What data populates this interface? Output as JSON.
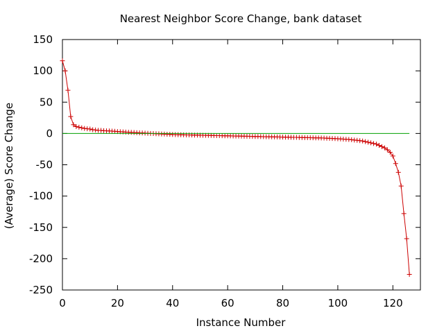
{
  "chart_data": {
    "type": "line",
    "title": "Nearest Neighbor Score Change, bank dataset",
    "xlabel": "Instance Number",
    "ylabel": "(Average) Score Change",
    "xlim": [
      0,
      130
    ],
    "ylim": [
      -250,
      150
    ],
    "xticks": [
      0,
      20,
      40,
      60,
      80,
      100,
      120
    ],
    "yticks": [
      150,
      100,
      50,
      0,
      -50,
      -100,
      -150,
      -200,
      -250
    ],
    "grid": false,
    "legend": "none",
    "series": [
      {
        "color": "#cc0000",
        "marker": "plus",
        "x": [
          0,
          1,
          2,
          3,
          4,
          5,
          6,
          7,
          8,
          9,
          10,
          11,
          12,
          13,
          14,
          15,
          16,
          17,
          18,
          19,
          20,
          21,
          22,
          23,
          24,
          25,
          26,
          27,
          28,
          29,
          30,
          31,
          32,
          33,
          34,
          35,
          36,
          37,
          38,
          39,
          40,
          41,
          42,
          43,
          44,
          45,
          46,
          47,
          48,
          49,
          50,
          51,
          52,
          53,
          54,
          55,
          56,
          57,
          58,
          59,
          60,
          61,
          62,
          63,
          64,
          65,
          66,
          67,
          68,
          69,
          70,
          71,
          72,
          73,
          74,
          75,
          76,
          77,
          78,
          79,
          80,
          81,
          82,
          83,
          84,
          85,
          86,
          87,
          88,
          89,
          90,
          91,
          92,
          93,
          94,
          95,
          96,
          97,
          98,
          99,
          100,
          101,
          102,
          103,
          104,
          105,
          106,
          107,
          108,
          109,
          110,
          111,
          112,
          113,
          114,
          115,
          116,
          117,
          118,
          119,
          120,
          121,
          122,
          123,
          124,
          125,
          126
        ],
        "y": [
          116,
          100,
          69,
          27,
          14,
          11,
          10,
          9,
          8,
          7.5,
          7,
          6,
          5.5,
          5,
          4.8,
          4.5,
          4.2,
          4,
          3.7,
          3.4,
          3.1,
          2.8,
          2.5,
          2.2,
          2,
          1.8,
          1.5,
          1.3,
          1,
          0.8,
          0.5,
          0.3,
          0,
          -0.2,
          -0.4,
          -0.6,
          -0.8,
          -1,
          -1.2,
          -1.4,
          -1.6,
          -1.8,
          -2,
          -2.1,
          -2.2,
          -2.3,
          -2.4,
          -2.5,
          -2.6,
          -2.7,
          -2.8,
          -2.9,
          -3,
          -3.1,
          -3.2,
          -3.3,
          -3.4,
          -3.5,
          -3.6,
          -3.7,
          -3.8,
          -3.9,
          -4,
          -4.1,
          -4.2,
          -4.3,
          -4.4,
          -4.5,
          -4.6,
          -4.7,
          -4.8,
          -4.9,
          -5,
          -5.1,
          -5.2,
          -5.3,
          -5.4,
          -5.5,
          -5.6,
          -5.7,
          -5.8,
          -5.9,
          -6,
          -6.1,
          -6.2,
          -6.3,
          -6.4,
          -6.5,
          -6.6,
          -6.7,
          -6.8,
          -6.9,
          -7,
          -7.1,
          -7.2,
          -7.4,
          -7.6,
          -7.8,
          -8,
          -8.2,
          -8.4,
          -8.7,
          -9,
          -9.3,
          -9.6,
          -10,
          -10.5,
          -11,
          -11.5,
          -12,
          -13,
          -14,
          -15,
          -16,
          -17,
          -19,
          -21,
          -23,
          -26,
          -30,
          -36,
          -48,
          -62,
          -84,
          -128,
          -168,
          -225
        ]
      },
      {
        "color": "#00a000",
        "marker": "none",
        "x": [
          0,
          126
        ],
        "y": [
          0,
          0
        ]
      }
    ]
  }
}
